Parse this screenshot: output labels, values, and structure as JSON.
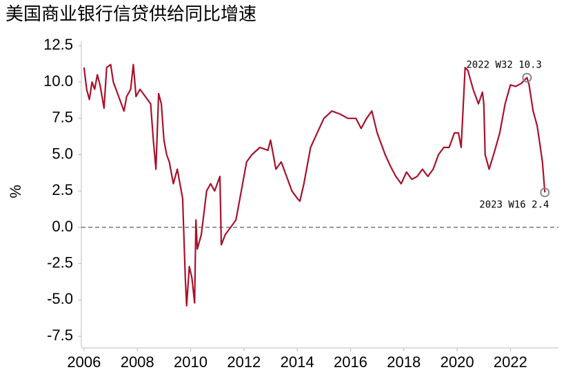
{
  "chart_data": {
    "type": "line",
    "title": "美国商业银行信贷供给同比增速",
    "ylabel": "%",
    "color": "#a8102a",
    "x": [
      2006.0,
      2006.1,
      2006.2,
      2006.3,
      2006.4,
      2006.5,
      2006.6,
      2006.75,
      2006.85,
      2007.0,
      2007.1,
      2007.3,
      2007.5,
      2007.6,
      2007.75,
      2007.85,
      2007.95,
      2008.1,
      2008.3,
      2008.5,
      2008.6,
      2008.7,
      2008.8,
      2008.9,
      2009.0,
      2009.1,
      2009.2,
      2009.35,
      2009.5,
      2009.6,
      2009.7,
      2009.8,
      2009.85,
      2009.95,
      2010.05,
      2010.15,
      2010.2,
      2010.25,
      2010.4,
      2010.6,
      2010.75,
      2010.9,
      2011.1,
      2011.15,
      2011.3,
      2011.5,
      2011.7,
      2011.9,
      2012.1,
      2012.3,
      2012.6,
      2012.9,
      2013.0,
      2013.2,
      2013.4,
      2013.6,
      2013.8,
      2014.0,
      2014.1,
      2014.25,
      2014.5,
      2014.75,
      2015.0,
      2015.3,
      2015.6,
      2015.9,
      2016.2,
      2016.4,
      2016.6,
      2016.8,
      2017.0,
      2017.3,
      2017.5,
      2017.7,
      2017.9,
      2018.1,
      2018.3,
      2018.5,
      2018.7,
      2018.9,
      2019.1,
      2019.3,
      2019.5,
      2019.7,
      2019.9,
      2020.05,
      2020.15,
      2020.3,
      2020.4,
      2020.6,
      2020.8,
      2020.95,
      2021.0,
      2021.05,
      2021.2,
      2021.4,
      2021.6,
      2021.8,
      2022.0,
      2022.2,
      2022.4,
      2022.62,
      2022.7,
      2022.85,
      2023.0,
      2023.1,
      2023.2,
      2023.29
    ],
    "values": [
      11.0,
      9.5,
      8.8,
      10.0,
      9.5,
      10.5,
      9.8,
      8.2,
      11.0,
      11.2,
      10.0,
      9.0,
      8.0,
      9.0,
      9.5,
      11.2,
      9.0,
      9.5,
      9.0,
      8.5,
      6.0,
      4.0,
      9.2,
      8.5,
      6.0,
      5.0,
      4.5,
      3.0,
      4.0,
      3.0,
      2.0,
      -3.5,
      -5.4,
      -2.7,
      -3.5,
      -5.2,
      0.5,
      -1.5,
      -0.5,
      2.5,
      3.0,
      2.5,
      3.5,
      -1.2,
      -0.5,
      0.0,
      0.5,
      2.5,
      4.5,
      5.0,
      5.5,
      5.3,
      6.0,
      4.0,
      4.5,
      3.5,
      2.5,
      2.0,
      1.8,
      3.0,
      5.5,
      6.5,
      7.5,
      8.0,
      7.8,
      7.5,
      7.5,
      6.8,
      7.5,
      8.0,
      6.5,
      5.0,
      4.2,
      3.5,
      3.0,
      3.8,
      3.3,
      3.5,
      4.0,
      3.5,
      4.0,
      5.0,
      5.5,
      5.5,
      6.5,
      6.5,
      5.5,
      11.0,
      10.8,
      9.5,
      8.5,
      9.3,
      8.5,
      5.0,
      4.0,
      5.2,
      6.5,
      8.5,
      9.8,
      9.7,
      9.9,
      10.3,
      9.8,
      8.0,
      7.0,
      5.8,
      4.5,
      2.4
    ],
    "xlim": [
      2005.9,
      2023.8
    ],
    "xticks": [
      2006,
      2008,
      2010,
      2012,
      2014,
      2016,
      2018,
      2020,
      2022
    ],
    "ylim": [
      -8.3,
      12.8
    ],
    "yticks": [
      12.5,
      {
        "value": 10,
        "label": "10.0"
      },
      7.5,
      {
        "value": 5,
        "label": "5.0"
      },
      2.5,
      {
        "value": 0,
        "label": "0.0"
      },
      -2.5,
      {
        "value": -5,
        "label": "-5.0"
      },
      -7.5
    ],
    "reference_line": 0,
    "annotations": [
      "2022 W32 10.3",
      "2023 W16 2.4"
    ]
  }
}
